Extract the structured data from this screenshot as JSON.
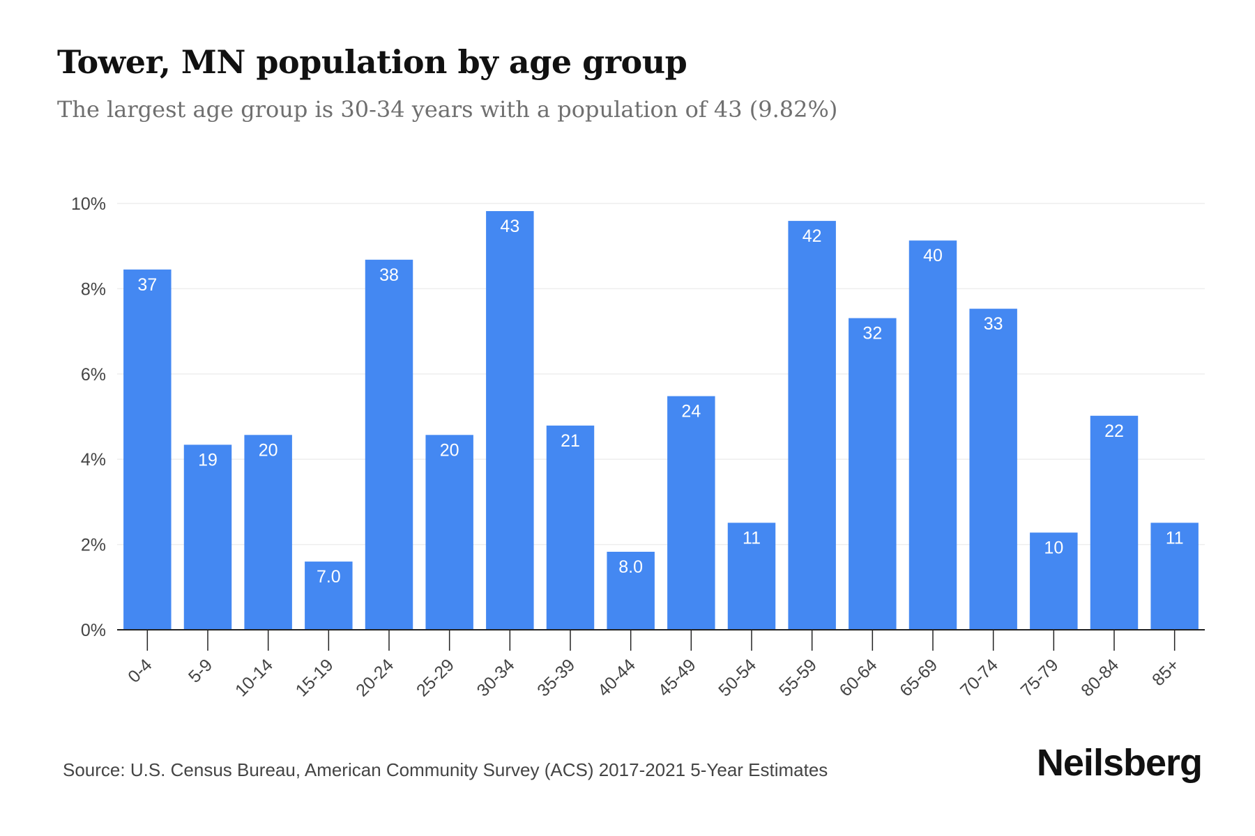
{
  "title": "Tower, MN population by age group",
  "subtitle": "The largest age group is 30-34 years with a population of 43 (9.82%)",
  "source": "Source: U.S. Census Bureau, American Community Survey (ACS) 2017-2021 5-Year Estimates",
  "brand": "Neilsberg",
  "colors": {
    "bar": "#4488f2",
    "bar_label": "#ffffff",
    "grid": "#eeeeee",
    "axis": "#222222",
    "tick_text": "#444444"
  },
  "chart_data": {
    "type": "bar",
    "categories": [
      "0-4",
      "5-9",
      "10-14",
      "15-19",
      "20-24",
      "25-29",
      "30-34",
      "35-39",
      "40-44",
      "45-49",
      "50-54",
      "55-59",
      "60-64",
      "65-69",
      "70-74",
      "75-79",
      "80-84",
      "85+"
    ],
    "values": [
      8.45,
      4.34,
      4.57,
      1.6,
      8.68,
      4.57,
      9.82,
      4.79,
      1.83,
      5.48,
      2.51,
      9.59,
      7.31,
      9.13,
      7.53,
      2.28,
      5.02,
      2.51
    ],
    "data_labels": [
      "37",
      "19",
      "20",
      "7.0",
      "38",
      "20",
      "43",
      "21",
      "8.0",
      "24",
      "11",
      "42",
      "32",
      "40",
      "33",
      "10",
      "22",
      "11"
    ],
    "y_ticks": [
      {
        "value": 0,
        "label": "0%"
      },
      {
        "value": 2,
        "label": "2%"
      },
      {
        "value": 4,
        "label": "4%"
      },
      {
        "value": 6,
        "label": "6%"
      },
      {
        "value": 8,
        "label": "8%"
      },
      {
        "value": 10,
        "label": "10%"
      }
    ],
    "ylim": [
      0,
      10
    ],
    "grid": true,
    "xlabel": "",
    "ylabel": ""
  }
}
